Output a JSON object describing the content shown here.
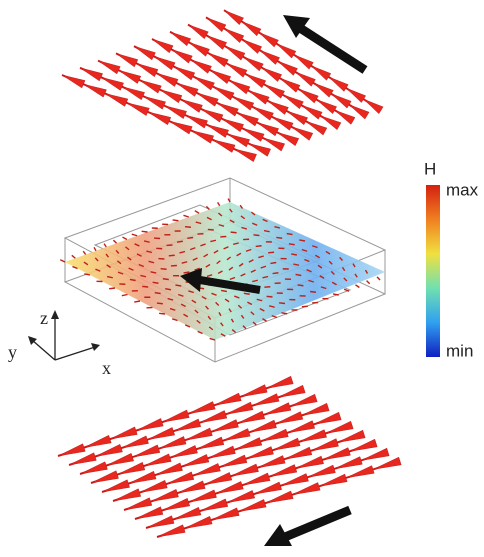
{
  "colorbar": {
    "title": "H",
    "max_label": "max",
    "min_label": "min"
  },
  "axes": {
    "z": "z",
    "y": "y",
    "x": "x"
  }
}
